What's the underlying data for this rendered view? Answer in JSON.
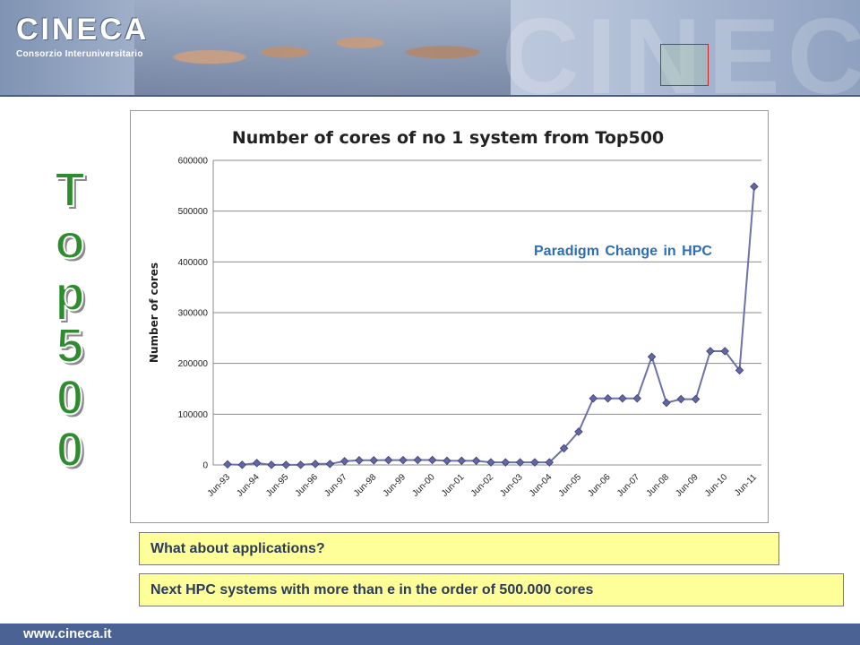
{
  "header": {
    "logo_name": "CINECA",
    "logo_subtitle": "Consorzio Interuniversitario",
    "accent_color": "#4a6394"
  },
  "side_title": [
    "T",
    "o",
    "p",
    "5",
    "0",
    "0"
  ],
  "annotation": "Paradigm Change in HPC",
  "notes": {
    "question": "What about applications?",
    "statement": "Next  HPC systems with more than e in the order of 500.000 cores"
  },
  "footer": {
    "url": "www.cineca.it"
  },
  "chart_data": {
    "type": "line",
    "title": "Number of cores of no 1 system from Top500",
    "xlabel": "",
    "ylabel": "Number of cores",
    "ylim": [
      0,
      600000
    ],
    "yticks": [
      0,
      100000,
      200000,
      300000,
      400000,
      500000,
      600000
    ],
    "xtick_labels": [
      "Jun-93",
      "Jun-94",
      "Jun-95",
      "Jun-96",
      "Jun-97",
      "Jun-98",
      "Jun-99",
      "Jun-00",
      "Jun-01",
      "Jun-02",
      "Jun-03",
      "Jun-04",
      "Jun-05",
      "Jun-06",
      "Jun-07",
      "Jun-08",
      "Jun-09",
      "Jun-10",
      "Jun-11"
    ],
    "x": [
      "Jun-93",
      "Nov-93",
      "Jun-94",
      "Nov-94",
      "Jun-95",
      "Nov-95",
      "Jun-96",
      "Nov-96",
      "Jun-97",
      "Nov-97",
      "Jun-98",
      "Nov-98",
      "Jun-99",
      "Nov-99",
      "Jun-00",
      "Nov-00",
      "Jun-01",
      "Nov-01",
      "Jun-02",
      "Nov-02",
      "Jun-03",
      "Nov-03",
      "Jun-04",
      "Nov-04",
      "Jun-05",
      "Nov-05",
      "Jun-06",
      "Nov-06",
      "Jun-07",
      "Nov-07",
      "Jun-08",
      "Nov-08",
      "Jun-09",
      "Nov-09",
      "Jun-10",
      "Nov-10",
      "Jun-11"
    ],
    "series": [
      {
        "values": [
          1024,
          140,
          3680,
          140,
          140,
          140,
          2048,
          2048,
          7264,
          9152,
          9152,
          9472,
          9472,
          9632,
          9632,
          8192,
          8192,
          8192,
          5120,
          5120,
          5120,
          5120,
          5120,
          32768,
          65536,
          131072,
          131072,
          131072,
          131072,
          212992,
          122400,
          129600,
          129600,
          224162,
          224162,
          186368,
          548352
        ],
        "color": "#6d72a8"
      }
    ],
    "grid": true,
    "legend": "none"
  }
}
